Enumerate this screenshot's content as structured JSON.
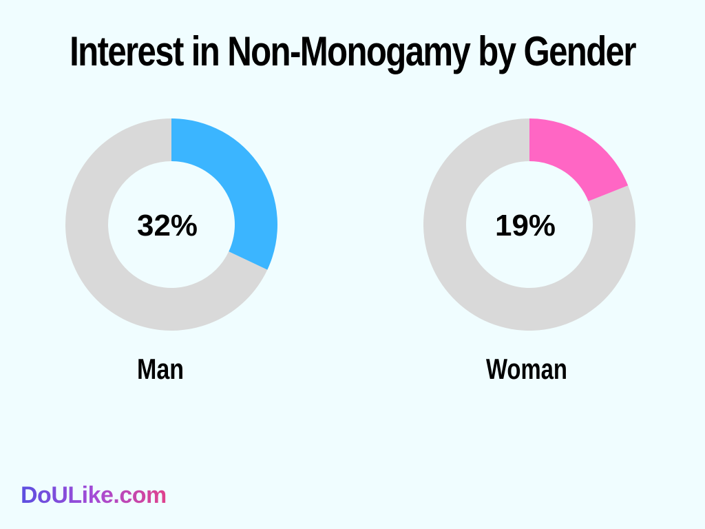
{
  "title": "Interest in Non-Monogamy by Gender",
  "chart_data": {
    "type": "pie",
    "title": "Interest in Non-Monogamy by Gender",
    "charts": [
      {
        "category": "Man",
        "value": 32,
        "label": "32%",
        "color": "#3bb5ff",
        "track_color": "#d9d9d9"
      },
      {
        "category": "Woman",
        "value": 19,
        "label": "19%",
        "color": "#ff66c4",
        "track_color": "#d9d9d9"
      }
    ]
  },
  "logo": "DoULike.com",
  "colors": {
    "background": "#f0fdff",
    "man": "#3bb5ff",
    "woman": "#ff66c4",
    "track": "#d9d9d9"
  }
}
